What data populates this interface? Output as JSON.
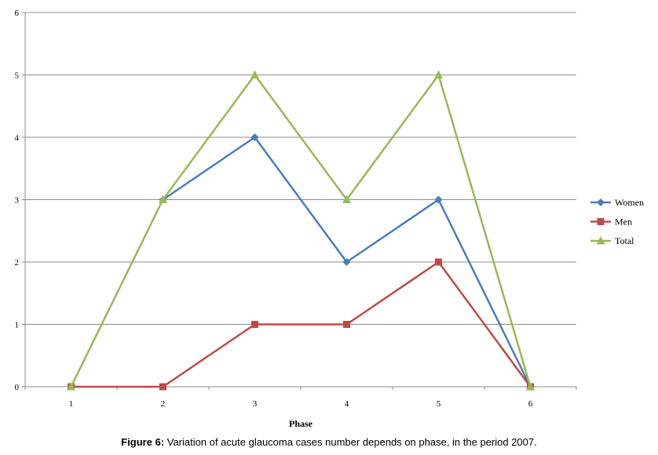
{
  "chart_data": {
    "type": "line",
    "x": [
      1,
      2,
      3,
      4,
      5,
      6
    ],
    "series": [
      {
        "name": "Women",
        "color": "#4a7ebb",
        "marker": "diamond",
        "values": [
          null,
          3,
          4,
          2,
          3,
          0
        ]
      },
      {
        "name": "Men",
        "color": "#be4b48",
        "marker": "square",
        "values": [
          0,
          0,
          1,
          1,
          2,
          0
        ]
      },
      {
        "name": "Total",
        "color": "#98b954",
        "marker": "triangle",
        "values": [
          0,
          3,
          5,
          3,
          5,
          0
        ]
      }
    ],
    "xlabel": "Phase",
    "ylabel": "",
    "ylim": [
      0,
      6
    ],
    "yticks": [
      0,
      1,
      2,
      3,
      4,
      5,
      6
    ],
    "grid": true,
    "legend_position": "right"
  },
  "caption": {
    "label": "Figure 6:",
    "text": " Variation of acute glaucoma cases number depends on phase, in the period 2007."
  }
}
